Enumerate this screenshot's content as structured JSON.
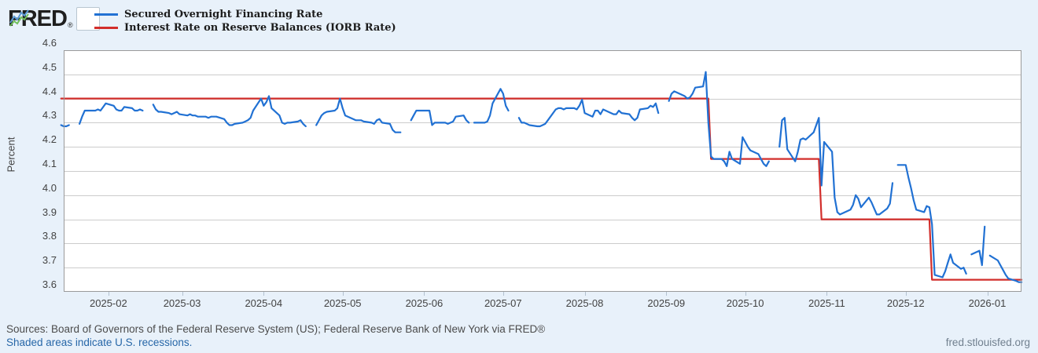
{
  "header": {
    "logo_text": "FRED",
    "logo_reg": "®",
    "sparkline_icon": "fred-sparkline-icon"
  },
  "legend": [
    {
      "label": "Secured Overnight Financing Rate",
      "color": "#2171d3"
    },
    {
      "label": "Interest Rate on Reserve Balances (IORB Rate)",
      "color": "#d22e2b"
    }
  ],
  "footer": {
    "sources_line": "Sources: Board of Governors of the Federal Reserve System (US); Federal Reserve Bank of New York via FRED®",
    "recessions_note": "Shaded areas indicate U.S. recessions.",
    "site": "fred.stlouisfed.org"
  },
  "chart_data": {
    "type": "line",
    "ylabel": "Percent",
    "ylim": [
      3.6,
      4.6
    ],
    "grid": true,
    "legend_position": "top-left",
    "x_domain": [
      "2025-01-15",
      "2026-01-14"
    ],
    "y_ticks": [
      "4.6",
      "4.5",
      "4.4",
      "4.3",
      "4.2",
      "4.1",
      "4.0",
      "3.9",
      "3.8",
      "3.7",
      "3.6"
    ],
    "x_ticks": [
      {
        "date": "2025-02-01",
        "label": "2025-02"
      },
      {
        "date": "2025-03-01",
        "label": "2025-03"
      },
      {
        "date": "2025-04-01",
        "label": "2025-04"
      },
      {
        "date": "2025-05-01",
        "label": "2025-05"
      },
      {
        "date": "2025-06-01",
        "label": "2025-06"
      },
      {
        "date": "2025-07-01",
        "label": "2025-07"
      },
      {
        "date": "2025-08-01",
        "label": "2025-08"
      },
      {
        "date": "2025-09-01",
        "label": "2025-09"
      },
      {
        "date": "2025-10-01",
        "label": "2025-10"
      },
      {
        "date": "2025-11-01",
        "label": "2025-11"
      },
      {
        "date": "2025-12-01",
        "label": "2025-12"
      },
      {
        "date": "2026-01-01",
        "label": "2026-01"
      }
    ],
    "series": [
      {
        "name": "Secured Overnight Financing Rate",
        "color": "#2171d3",
        "points": [
          [
            "2025-01-14",
            4.29
          ],
          [
            "2025-01-15",
            4.285
          ],
          [
            "2025-01-16",
            4.285
          ],
          [
            "2025-01-17",
            4.29
          ],
          null,
          [
            "2025-01-21",
            4.295
          ],
          [
            "2025-01-22",
            4.325
          ],
          [
            "2025-01-23",
            4.35
          ],
          [
            "2025-01-24",
            4.35
          ],
          [
            "2025-01-27",
            4.35
          ],
          [
            "2025-01-28",
            4.355
          ],
          [
            "2025-01-29",
            4.35
          ],
          [
            "2025-01-30",
            4.365
          ],
          [
            "2025-01-31",
            4.38
          ],
          [
            "2025-02-03",
            4.37
          ],
          [
            "2025-02-04",
            4.355
          ],
          [
            "2025-02-05",
            4.35
          ],
          [
            "2025-02-06",
            4.35
          ],
          [
            "2025-02-07",
            4.365
          ],
          [
            "2025-02-10",
            4.36
          ],
          [
            "2025-02-11",
            4.35
          ],
          [
            "2025-02-12",
            4.35
          ],
          [
            "2025-02-13",
            4.355
          ],
          [
            "2025-02-14",
            4.35
          ],
          null,
          [
            "2025-02-18",
            4.375
          ],
          [
            "2025-02-19",
            4.355
          ],
          [
            "2025-02-20",
            4.345
          ],
          [
            "2025-02-21",
            4.345
          ],
          [
            "2025-02-24",
            4.34
          ],
          [
            "2025-02-25",
            4.335
          ],
          [
            "2025-02-26",
            4.34
          ],
          [
            "2025-02-27",
            4.345
          ],
          [
            "2025-02-28",
            4.335
          ],
          [
            "2025-03-03",
            4.33
          ],
          [
            "2025-03-04",
            4.335
          ],
          [
            "2025-03-05",
            4.33
          ],
          [
            "2025-03-06",
            4.33
          ],
          [
            "2025-03-07",
            4.325
          ],
          [
            "2025-03-10",
            4.325
          ],
          [
            "2025-03-11",
            4.32
          ],
          [
            "2025-03-12",
            4.325
          ],
          [
            "2025-03-13",
            4.325
          ],
          [
            "2025-03-14",
            4.325
          ],
          [
            "2025-03-17",
            4.315
          ],
          [
            "2025-03-18",
            4.3
          ],
          [
            "2025-03-19",
            4.29
          ],
          [
            "2025-03-20",
            4.29
          ],
          [
            "2025-03-21",
            4.295
          ],
          [
            "2025-03-24",
            4.3
          ],
          [
            "2025-03-25",
            4.305
          ],
          [
            "2025-03-26",
            4.31
          ],
          [
            "2025-03-27",
            4.32
          ],
          [
            "2025-03-28",
            4.35
          ],
          [
            "2025-03-31",
            4.4
          ],
          [
            "2025-04-01",
            4.37
          ],
          [
            "2025-04-02",
            4.385
          ],
          [
            "2025-04-03",
            4.41
          ],
          [
            "2025-04-04",
            4.36
          ],
          [
            "2025-04-07",
            4.33
          ],
          [
            "2025-04-08",
            4.3
          ],
          [
            "2025-04-09",
            4.295
          ],
          [
            "2025-04-10",
            4.3
          ],
          [
            "2025-04-11",
            4.3
          ],
          [
            "2025-04-14",
            4.305
          ],
          [
            "2025-04-15",
            4.31
          ],
          [
            "2025-04-16",
            4.295
          ],
          [
            "2025-04-17",
            4.285
          ],
          null,
          [
            "2025-04-21",
            4.29
          ],
          [
            "2025-04-22",
            4.31
          ],
          [
            "2025-04-23",
            4.33
          ],
          [
            "2025-04-24",
            4.34
          ],
          [
            "2025-04-25",
            4.345
          ],
          [
            "2025-04-28",
            4.35
          ],
          [
            "2025-04-29",
            4.36
          ],
          [
            "2025-04-30",
            4.4
          ],
          [
            "2025-05-01",
            4.36
          ],
          [
            "2025-05-02",
            4.33
          ],
          [
            "2025-05-05",
            4.315
          ],
          [
            "2025-05-06",
            4.31
          ],
          [
            "2025-05-07",
            4.31
          ],
          [
            "2025-05-08",
            4.31
          ],
          [
            "2025-05-09",
            4.305
          ],
          [
            "2025-05-12",
            4.3
          ],
          [
            "2025-05-13",
            4.295
          ],
          [
            "2025-05-14",
            4.31
          ],
          [
            "2025-05-15",
            4.315
          ],
          [
            "2025-05-16",
            4.3
          ],
          [
            "2025-05-19",
            4.295
          ],
          [
            "2025-05-20",
            4.27
          ],
          [
            "2025-05-21",
            4.26
          ],
          [
            "2025-05-22",
            4.26
          ],
          [
            "2025-05-23",
            4.26
          ],
          null,
          [
            "2025-05-27",
            4.31
          ],
          [
            "2025-05-28",
            4.33
          ],
          [
            "2025-05-29",
            4.35
          ],
          [
            "2025-05-30",
            4.35
          ],
          [
            "2025-06-02",
            4.35
          ],
          [
            "2025-06-03",
            4.35
          ],
          [
            "2025-06-04",
            4.29
          ],
          [
            "2025-06-05",
            4.3
          ],
          [
            "2025-06-06",
            4.3
          ],
          [
            "2025-06-09",
            4.3
          ],
          [
            "2025-06-10",
            4.295
          ],
          [
            "2025-06-11",
            4.3
          ],
          [
            "2025-06-12",
            4.305
          ],
          [
            "2025-06-13",
            4.325
          ],
          [
            "2025-06-16",
            4.33
          ],
          [
            "2025-06-17",
            4.31
          ],
          [
            "2025-06-18",
            4.3
          ],
          null,
          [
            "2025-06-20",
            4.3
          ],
          [
            "2025-06-23",
            4.3
          ],
          [
            "2025-06-24",
            4.3
          ],
          [
            "2025-06-25",
            4.305
          ],
          [
            "2025-06-26",
            4.33
          ],
          [
            "2025-06-27",
            4.38
          ],
          [
            "2025-06-30",
            4.44
          ],
          [
            "2025-07-01",
            4.42
          ],
          [
            "2025-07-02",
            4.37
          ],
          [
            "2025-07-03",
            4.35
          ],
          null,
          [
            "2025-07-07",
            4.32
          ],
          [
            "2025-07-08",
            4.3
          ],
          [
            "2025-07-09",
            4.3
          ],
          [
            "2025-07-10",
            4.295
          ],
          [
            "2025-07-11",
            4.29
          ],
          [
            "2025-07-14",
            4.285
          ],
          [
            "2025-07-15",
            4.285
          ],
          [
            "2025-07-16",
            4.29
          ],
          [
            "2025-07-17",
            4.295
          ],
          [
            "2025-07-18",
            4.31
          ],
          [
            "2025-07-21",
            4.355
          ],
          [
            "2025-07-22",
            4.36
          ],
          [
            "2025-07-23",
            4.36
          ],
          [
            "2025-07-24",
            4.355
          ],
          [
            "2025-07-25",
            4.36
          ],
          [
            "2025-07-28",
            4.36
          ],
          [
            "2025-07-29",
            4.355
          ],
          [
            "2025-07-30",
            4.37
          ],
          [
            "2025-07-31",
            4.395
          ],
          [
            "2025-08-01",
            4.34
          ],
          [
            "2025-08-04",
            4.325
          ],
          [
            "2025-08-05",
            4.35
          ],
          [
            "2025-08-06",
            4.35
          ],
          [
            "2025-08-07",
            4.335
          ],
          [
            "2025-08-08",
            4.355
          ],
          [
            "2025-08-11",
            4.34
          ],
          [
            "2025-08-12",
            4.335
          ],
          [
            "2025-08-13",
            4.335
          ],
          [
            "2025-08-14",
            4.35
          ],
          [
            "2025-08-15",
            4.34
          ],
          [
            "2025-08-18",
            4.335
          ],
          [
            "2025-08-19",
            4.32
          ],
          [
            "2025-08-20",
            4.31
          ],
          [
            "2025-08-21",
            4.32
          ],
          [
            "2025-08-22",
            4.355
          ],
          [
            "2025-08-25",
            4.36
          ],
          [
            "2025-08-26",
            4.37
          ],
          [
            "2025-08-27",
            4.365
          ],
          [
            "2025-08-28",
            4.38
          ],
          [
            "2025-08-29",
            4.34
          ],
          null,
          [
            "2025-09-02",
            4.39
          ],
          [
            "2025-09-03",
            4.42
          ],
          [
            "2025-09-04",
            4.43
          ],
          [
            "2025-09-05",
            4.425
          ],
          [
            "2025-09-08",
            4.41
          ],
          [
            "2025-09-09",
            4.4
          ],
          [
            "2025-09-10",
            4.405
          ],
          [
            "2025-09-11",
            4.42
          ],
          [
            "2025-09-12",
            4.445
          ],
          [
            "2025-09-15",
            4.45
          ],
          [
            "2025-09-16",
            4.51
          ],
          [
            "2025-09-17",
            4.3
          ],
          [
            "2025-09-18",
            4.16
          ],
          [
            "2025-09-19",
            4.15
          ],
          [
            "2025-09-22",
            4.15
          ],
          [
            "2025-09-23",
            4.14
          ],
          [
            "2025-09-24",
            4.12
          ],
          [
            "2025-09-25",
            4.18
          ],
          [
            "2025-09-26",
            4.15
          ],
          [
            "2025-09-29",
            4.13
          ],
          [
            "2025-09-30",
            4.24
          ],
          [
            "2025-10-01",
            4.22
          ],
          [
            "2025-10-02",
            4.2
          ],
          [
            "2025-10-03",
            4.185
          ],
          [
            "2025-10-06",
            4.17
          ],
          [
            "2025-10-07",
            4.15
          ],
          [
            "2025-10-08",
            4.13
          ],
          [
            "2025-10-09",
            4.12
          ],
          [
            "2025-10-10",
            4.14
          ],
          null,
          [
            "2025-10-14",
            4.2
          ],
          [
            "2025-10-15",
            4.31
          ],
          [
            "2025-10-16",
            4.32
          ],
          [
            "2025-10-17",
            4.19
          ],
          [
            "2025-10-20",
            4.14
          ],
          [
            "2025-10-21",
            4.18
          ],
          [
            "2025-10-22",
            4.23
          ],
          [
            "2025-10-23",
            4.235
          ],
          [
            "2025-10-24",
            4.23
          ],
          [
            "2025-10-27",
            4.26
          ],
          [
            "2025-10-28",
            4.29
          ],
          [
            "2025-10-29",
            4.32
          ],
          [
            "2025-10-30",
            4.04
          ],
          [
            "2025-10-31",
            4.22
          ],
          [
            "2025-11-03",
            4.18
          ],
          [
            "2025-11-04",
            3.99
          ],
          [
            "2025-11-05",
            3.93
          ],
          [
            "2025-11-06",
            3.92
          ],
          [
            "2025-11-07",
            3.925
          ],
          [
            "2025-11-10",
            3.94
          ],
          [
            "2025-11-11",
            3.96
          ],
          [
            "2025-11-12",
            4.0
          ],
          [
            "2025-11-13",
            3.985
          ],
          [
            "2025-11-14",
            3.95
          ],
          [
            "2025-11-17",
            3.99
          ],
          [
            "2025-11-18",
            3.97
          ],
          [
            "2025-11-19",
            3.945
          ],
          [
            "2025-11-20",
            3.92
          ],
          [
            "2025-11-21",
            3.92
          ],
          [
            "2025-11-24",
            3.945
          ],
          [
            "2025-11-25",
            3.965
          ],
          [
            "2025-11-26",
            4.05
          ],
          null,
          [
            "2025-11-28",
            4.125
          ],
          [
            "2025-12-01",
            4.125
          ],
          [
            "2025-12-02",
            4.075
          ],
          [
            "2025-12-03",
            4.03
          ],
          [
            "2025-12-04",
            3.98
          ],
          [
            "2025-12-05",
            3.94
          ],
          [
            "2025-12-08",
            3.93
          ],
          [
            "2025-12-09",
            3.955
          ],
          [
            "2025-12-10",
            3.95
          ],
          [
            "2025-12-11",
            3.88
          ],
          [
            "2025-12-12",
            3.67
          ],
          [
            "2025-12-15",
            3.66
          ],
          [
            "2025-12-16",
            3.685
          ],
          [
            "2025-12-17",
            3.72
          ],
          [
            "2025-12-18",
            3.755
          ],
          [
            "2025-12-19",
            3.72
          ],
          [
            "2025-12-22",
            3.695
          ],
          [
            "2025-12-23",
            3.7
          ],
          [
            "2025-12-24",
            3.675
          ],
          null,
          [
            "2025-12-26",
            3.755
          ],
          [
            "2025-12-29",
            3.77
          ],
          [
            "2025-12-30",
            3.71
          ],
          [
            "2025-12-31",
            3.87
          ],
          null,
          [
            "2026-01-02",
            3.75
          ],
          [
            "2026-01-05",
            3.73
          ],
          [
            "2026-01-06",
            3.71
          ],
          [
            "2026-01-07",
            3.69
          ],
          [
            "2026-01-08",
            3.67
          ],
          [
            "2026-01-09",
            3.655
          ],
          [
            "2026-01-12",
            3.645
          ],
          [
            "2026-01-13",
            3.64
          ],
          [
            "2026-01-14",
            3.64
          ]
        ]
      },
      {
        "name": "Interest Rate on Reserve Balances (IORB Rate)",
        "color": "#d22e2b",
        "points": [
          [
            "2025-01-14",
            4.4
          ],
          [
            "2025-09-17",
            4.4
          ],
          [
            "2025-09-18",
            4.15
          ],
          [
            "2025-10-29",
            4.15
          ],
          [
            "2025-10-30",
            3.9
          ],
          [
            "2025-12-10",
            3.9
          ],
          [
            "2025-12-11",
            3.65
          ],
          [
            "2026-01-14",
            3.65
          ]
        ]
      }
    ]
  }
}
